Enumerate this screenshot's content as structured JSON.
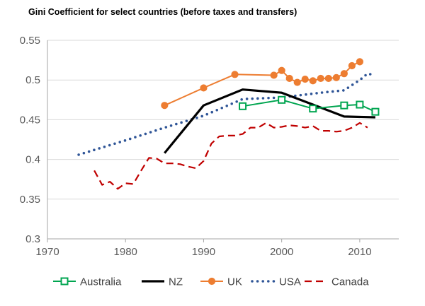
{
  "chart_data": {
    "type": "line",
    "title": "Gini Coefficient for select countries (before taxes and transfers)",
    "xlabel": "",
    "ylabel": "",
    "xlim": [
      1970,
      2015
    ],
    "ylim": [
      0.3,
      0.55
    ],
    "xticks": [
      1970,
      1980,
      1990,
      2000,
      2010
    ],
    "xtick_labels": [
      "1970",
      "1980",
      "1990",
      "2000",
      "2010"
    ],
    "yticks": [
      0.3,
      0.35,
      0.4,
      0.45,
      0.5,
      0.55
    ],
    "ytick_labels": [
      "0.3",
      "0.35",
      "0.4",
      "0.45",
      "0.5",
      "0.55"
    ],
    "grid": "horizontal",
    "legend_position": "bottom",
    "series": [
      {
        "name": "Australia",
        "color": "#00a550",
        "style": "solid",
        "marker": "square",
        "x": [
          1995,
          2000,
          2004,
          2008,
          2010,
          2012
        ],
        "y": [
          0.467,
          0.475,
          0.464,
          0.468,
          0.469,
          0.46
        ]
      },
      {
        "name": "NZ",
        "color": "#000000",
        "style": "solid-thick",
        "marker": "none",
        "x": [
          1985,
          1990,
          1995,
          2000,
          2004,
          2008,
          2012
        ],
        "y": [
          0.408,
          0.468,
          0.488,
          0.484,
          0.469,
          0.454,
          0.453
        ]
      },
      {
        "name": "UK",
        "color": "#ed7d31",
        "style": "solid",
        "marker": "circle",
        "x": [
          1985,
          1990,
          1994,
          1999,
          2000,
          2001,
          2002,
          2003,
          2004,
          2005,
          2006,
          2007,
          2008,
          2009,
          2010
        ],
        "y": [
          0.468,
          0.49,
          0.507,
          0.506,
          0.512,
          0.502,
          0.497,
          0.501,
          0.499,
          0.502,
          0.502,
          0.503,
          0.508,
          0.518,
          0.523
        ]
      },
      {
        "name": "USA",
        "color": "#2f5597",
        "style": "dotted",
        "marker": "none",
        "x": [
          1974,
          1980,
          1985,
          1990,
          1995,
          2000,
          2005,
          2008,
          2010,
          2011,
          2012
        ],
        "y": [
          0.406,
          0.424,
          0.44,
          0.455,
          0.476,
          0.478,
          0.484,
          0.487,
          0.5,
          0.508,
          0.506
        ]
      },
      {
        "name": "Canada",
        "color": "#c00000",
        "style": "dashed",
        "marker": "none",
        "x": [
          1976,
          1977,
          1978,
          1979,
          1980,
          1981,
          1982,
          1983,
          1984,
          1985,
          1986,
          1987,
          1988,
          1989,
          1990,
          1991,
          1992,
          1993,
          1994,
          1995,
          1996,
          1997,
          1998,
          1999,
          2000,
          2001,
          2002,
          2003,
          2004,
          2005,
          2006,
          2007,
          2008,
          2009,
          2010,
          2011
        ],
        "y": [
          0.386,
          0.368,
          0.372,
          0.363,
          0.37,
          0.369,
          0.386,
          0.402,
          0.401,
          0.395,
          0.395,
          0.394,
          0.391,
          0.389,
          0.398,
          0.42,
          0.429,
          0.43,
          0.43,
          0.432,
          0.44,
          0.44,
          0.446,
          0.44,
          0.441,
          0.443,
          0.442,
          0.44,
          0.442,
          0.436,
          0.436,
          0.435,
          0.436,
          0.44,
          0.446,
          0.44
        ]
      }
    ]
  }
}
